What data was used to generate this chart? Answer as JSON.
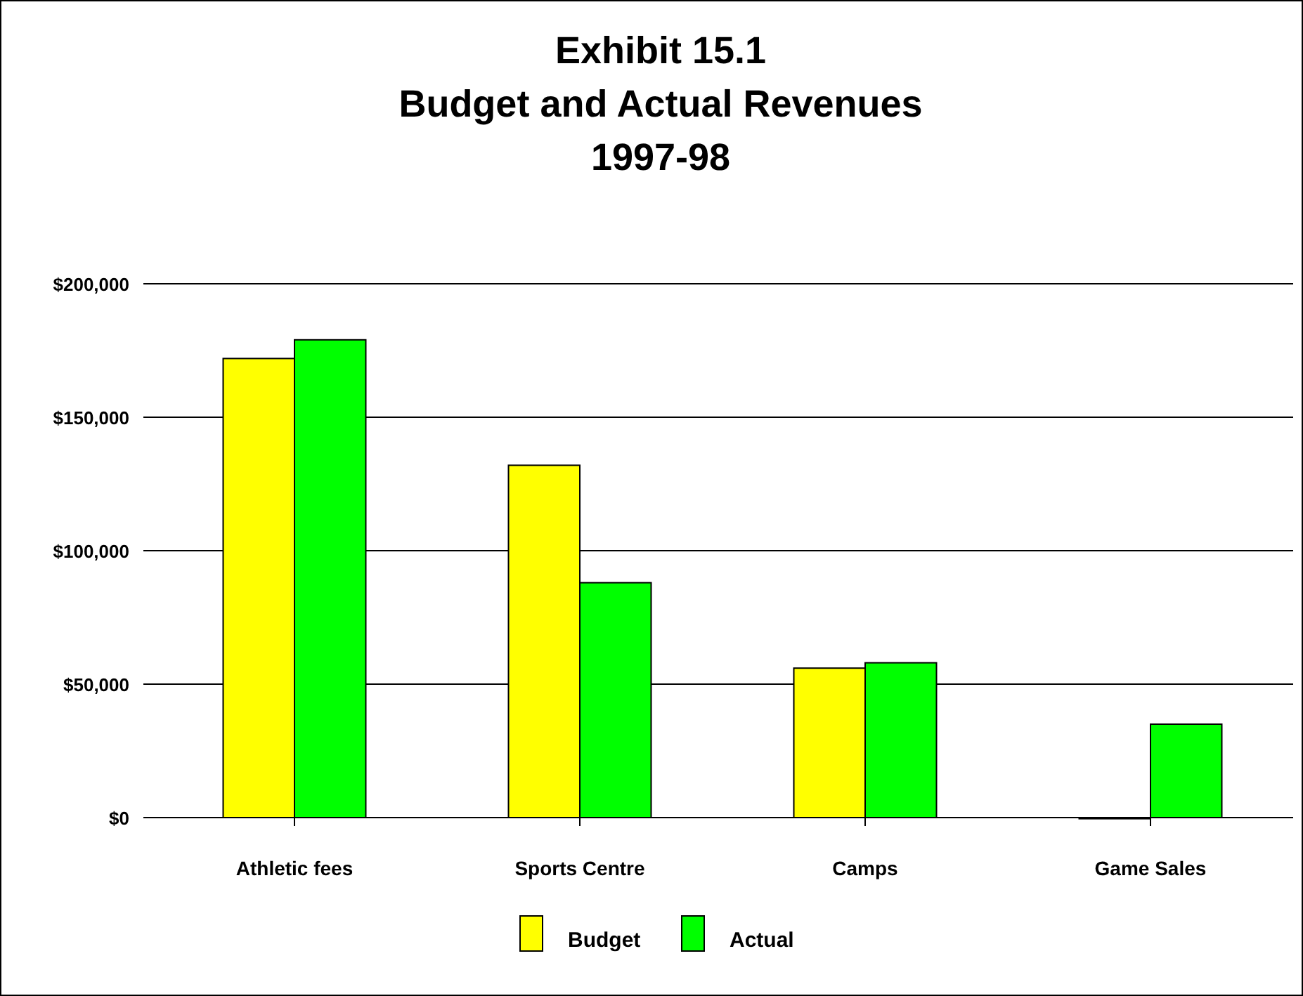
{
  "chart_data": {
    "type": "bar",
    "title": "Exhibit 15.1\nBudget and Actual Revenues\n1997-98",
    "categories": [
      "Athletic fees",
      "Sports Centre",
      "Camps",
      "Game Sales"
    ],
    "series": [
      {
        "name": "Budget",
        "color": "#ffff00",
        "values": [
          172000,
          132000,
          56000,
          0
        ]
      },
      {
        "name": "Actual",
        "color": "#00ff00",
        "values": [
          179000,
          88000,
          58000,
          35000
        ]
      }
    ],
    "ylim": [
      0,
      200000
    ],
    "yticks": [
      {
        "value": 0,
        "label": "$0"
      },
      {
        "value": 50000,
        "label": "$50,000"
      },
      {
        "value": 100000,
        "label": "$100,000"
      },
      {
        "value": 150000,
        "label": "$150,000"
      },
      {
        "value": 200000,
        "label": "$200,000"
      }
    ],
    "grid": "y",
    "legend": "bottom"
  }
}
